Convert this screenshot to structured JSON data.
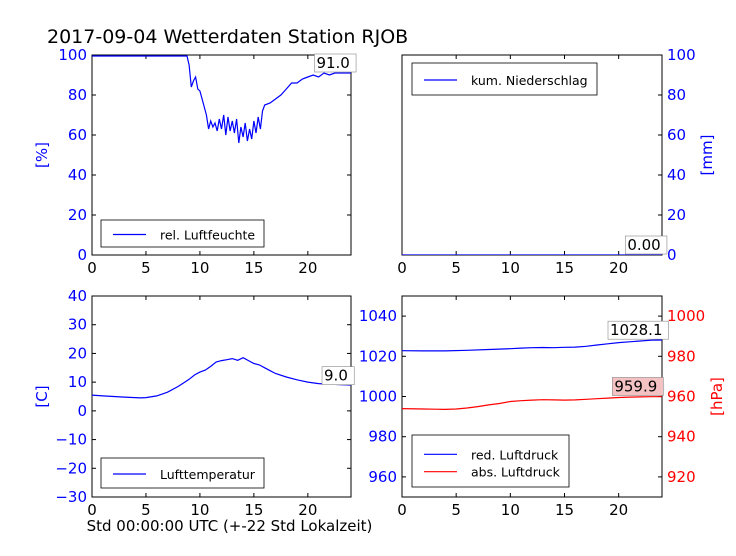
{
  "figure": {
    "title": "2017-09-04 Wetterdaten Station RJOB",
    "colors": {
      "blue": "#0000ff",
      "red": "#ff0000",
      "black": "#000000"
    }
  },
  "chart_data": [
    {
      "id": "humidity",
      "type": "line",
      "xlabel": "",
      "ylabel": "[%]",
      "ylabel_side": "left",
      "ylabel_color": "#0000ff",
      "xlim": [
        0,
        24
      ],
      "ylim": [
        0,
        100
      ],
      "xticks": [
        0,
        5,
        10,
        15,
        20
      ],
      "yticks": [
        0,
        20,
        40,
        60,
        80,
        100
      ],
      "ytick_color": "#0000ff",
      "legend": {
        "placement": "lower-left"
      },
      "annotation": {
        "text": "91.0",
        "x": 20.8,
        "y": 93.5,
        "bg": "#ffffff"
      },
      "series": [
        {
          "name": "rel. Luftfeuchte",
          "color": "#0000ff",
          "x": [
            0,
            1,
            2,
            3,
            4,
            5,
            6,
            7,
            8,
            8.8,
            9.0,
            9.2,
            9.4,
            9.6,
            9.8,
            10.0,
            10.3,
            10.6,
            10.8,
            11.0,
            11.2,
            11.4,
            11.6,
            11.8,
            12.0,
            12.2,
            12.4,
            12.6,
            12.8,
            13.0,
            13.2,
            13.4,
            13.6,
            13.8,
            14.0,
            14.2,
            14.4,
            14.6,
            14.8,
            15.0,
            15.2,
            15.4,
            15.6,
            15.8,
            16.0,
            16.5,
            17,
            17.5,
            18,
            18.5,
            19,
            19.5,
            20,
            20.5,
            21,
            21.5,
            22,
            22.5,
            23,
            23.5,
            24
          ],
          "y": [
            99.5,
            99.5,
            99.5,
            99.5,
            99.5,
            99.5,
            99.5,
            99.5,
            99.5,
            99.5,
            95,
            84,
            87,
            89,
            83,
            82,
            76,
            70,
            63,
            67,
            64,
            66,
            62,
            68,
            63,
            70,
            60,
            69,
            62,
            67,
            61,
            68,
            56,
            64,
            59,
            66,
            57,
            63,
            58,
            67,
            61,
            69,
            63,
            72,
            75,
            76,
            78,
            80,
            83,
            86,
            86,
            88,
            89,
            90,
            89,
            91,
            90,
            91,
            91,
            91,
            91
          ]
        }
      ]
    },
    {
      "id": "precip",
      "type": "line",
      "xlabel": "",
      "ylabel": "[mm]",
      "ylabel_side": "right",
      "ylabel_color": "#0000ff",
      "xlim": [
        0,
        24
      ],
      "ylim": [
        0,
        100
      ],
      "xticks": [
        0,
        5,
        10,
        15,
        20
      ],
      "yticks": [
        0,
        20,
        40,
        60,
        80,
        100
      ],
      "ytick_color": "#0000ff",
      "legend": {
        "placement": "top-left"
      },
      "annotation": {
        "text": "0.00",
        "x": 20.8,
        "y": 2.5,
        "bg": "#ffffff"
      },
      "series": [
        {
          "name": "kum. Niederschlag",
          "color": "#0000ff",
          "x": [
            0,
            24
          ],
          "y": [
            0,
            0
          ]
        }
      ]
    },
    {
      "id": "temperature",
      "type": "line",
      "xlabel": "Std 00:00:00 UTC (+-22 Std Lokalzeit)",
      "ylabel": "[C]",
      "ylabel_side": "left",
      "ylabel_color": "#0000ff",
      "xlim": [
        0,
        24
      ],
      "ylim": [
        -30,
        40
      ],
      "xticks": [
        0,
        5,
        10,
        15,
        20
      ],
      "yticks": [
        -30,
        -20,
        -10,
        0,
        10,
        20,
        30,
        40
      ],
      "ytick_color": "#0000ff",
      "legend": {
        "placement": "lower-left"
      },
      "annotation": {
        "text": "9.0",
        "x": 21.5,
        "y": 10.5,
        "bg": "#ffffff"
      },
      "series": [
        {
          "name": "Lufttemperatur",
          "color": "#0000ff",
          "x": [
            0,
            1,
            2,
            3,
            4,
            4.5,
            5,
            6,
            7,
            8,
            9,
            9.5,
            10,
            10.5,
            11,
            11.5,
            12,
            12.5,
            13,
            13.5,
            14,
            14.5,
            15,
            15.5,
            16,
            16.5,
            17,
            18,
            19,
            20,
            21,
            22,
            23,
            24
          ],
          "y": [
            5.5,
            5.2,
            5,
            4.8,
            4.6,
            4.5,
            4.6,
            5.2,
            6.5,
            8.5,
            11,
            12.5,
            13.5,
            14.2,
            15.5,
            17,
            17.5,
            17.8,
            18.2,
            17.6,
            18.5,
            17.5,
            16.5,
            16,
            15,
            14,
            13,
            11.8,
            10.8,
            10,
            9.5,
            9.3,
            9.1,
            9.0
          ]
        }
      ]
    },
    {
      "id": "pressure",
      "type": "line",
      "xlabel": "",
      "ylabel": "",
      "ylabel_side": "left",
      "ylabel_color": "#0000ff",
      "xlim": [
        0,
        24
      ],
      "ylim": [
        950,
        1050
      ],
      "xticks": [
        0,
        5,
        10,
        15,
        20
      ],
      "yticks": [
        960,
        980,
        1000,
        1020,
        1040
      ],
      "ytick_color": "#0000ff",
      "right_axis": {
        "ylabel": "[hPa]",
        "color": "#ff0000",
        "ylim": [
          910,
          1010
        ],
        "yticks": [
          920,
          940,
          960,
          980,
          1000
        ]
      },
      "legend": {
        "placement": "lower-left"
      },
      "annotations": [
        {
          "text": "1028.1",
          "x": 19.2,
          "y": 1030.5,
          "bg": "#ffffff"
        },
        {
          "text": "959.9",
          "x": 19.6,
          "y": 962.5,
          "bg": "#f4c2c2",
          "axis": "right"
        }
      ],
      "series": [
        {
          "name": "red. Luftdruck",
          "color": "#0000ff",
          "axis": "left",
          "x": [
            0,
            2,
            4,
            6,
            8,
            10,
            11,
            12,
            13,
            14,
            15,
            16,
            17,
            18,
            19,
            20,
            21,
            22,
            23,
            24
          ],
          "y": [
            1022.8,
            1022.7,
            1022.7,
            1023,
            1023.4,
            1023.8,
            1024.1,
            1024.3,
            1024.4,
            1024.3,
            1024.5,
            1024.6,
            1025,
            1025.6,
            1026.2,
            1026.8,
            1027.2,
            1027.6,
            1028,
            1028.1
          ]
        },
        {
          "name": "abs. Luftdruck",
          "color": "#ff0000",
          "axis": "right",
          "x": [
            0,
            2,
            3,
            4,
            5,
            6,
            7,
            8,
            9,
            10,
            11,
            12,
            13,
            14,
            15,
            16,
            17,
            18,
            19,
            20,
            21,
            22,
            23,
            24
          ],
          "y": [
            954,
            953.8,
            953.7,
            953.6,
            953.8,
            954.3,
            955,
            955.8,
            956.5,
            957.5,
            957.9,
            958.2,
            958.4,
            958.3,
            958.2,
            958.3,
            958.6,
            958.9,
            959.2,
            959.5,
            959.7,
            959.8,
            959.9,
            959.9
          ]
        }
      ]
    }
  ]
}
